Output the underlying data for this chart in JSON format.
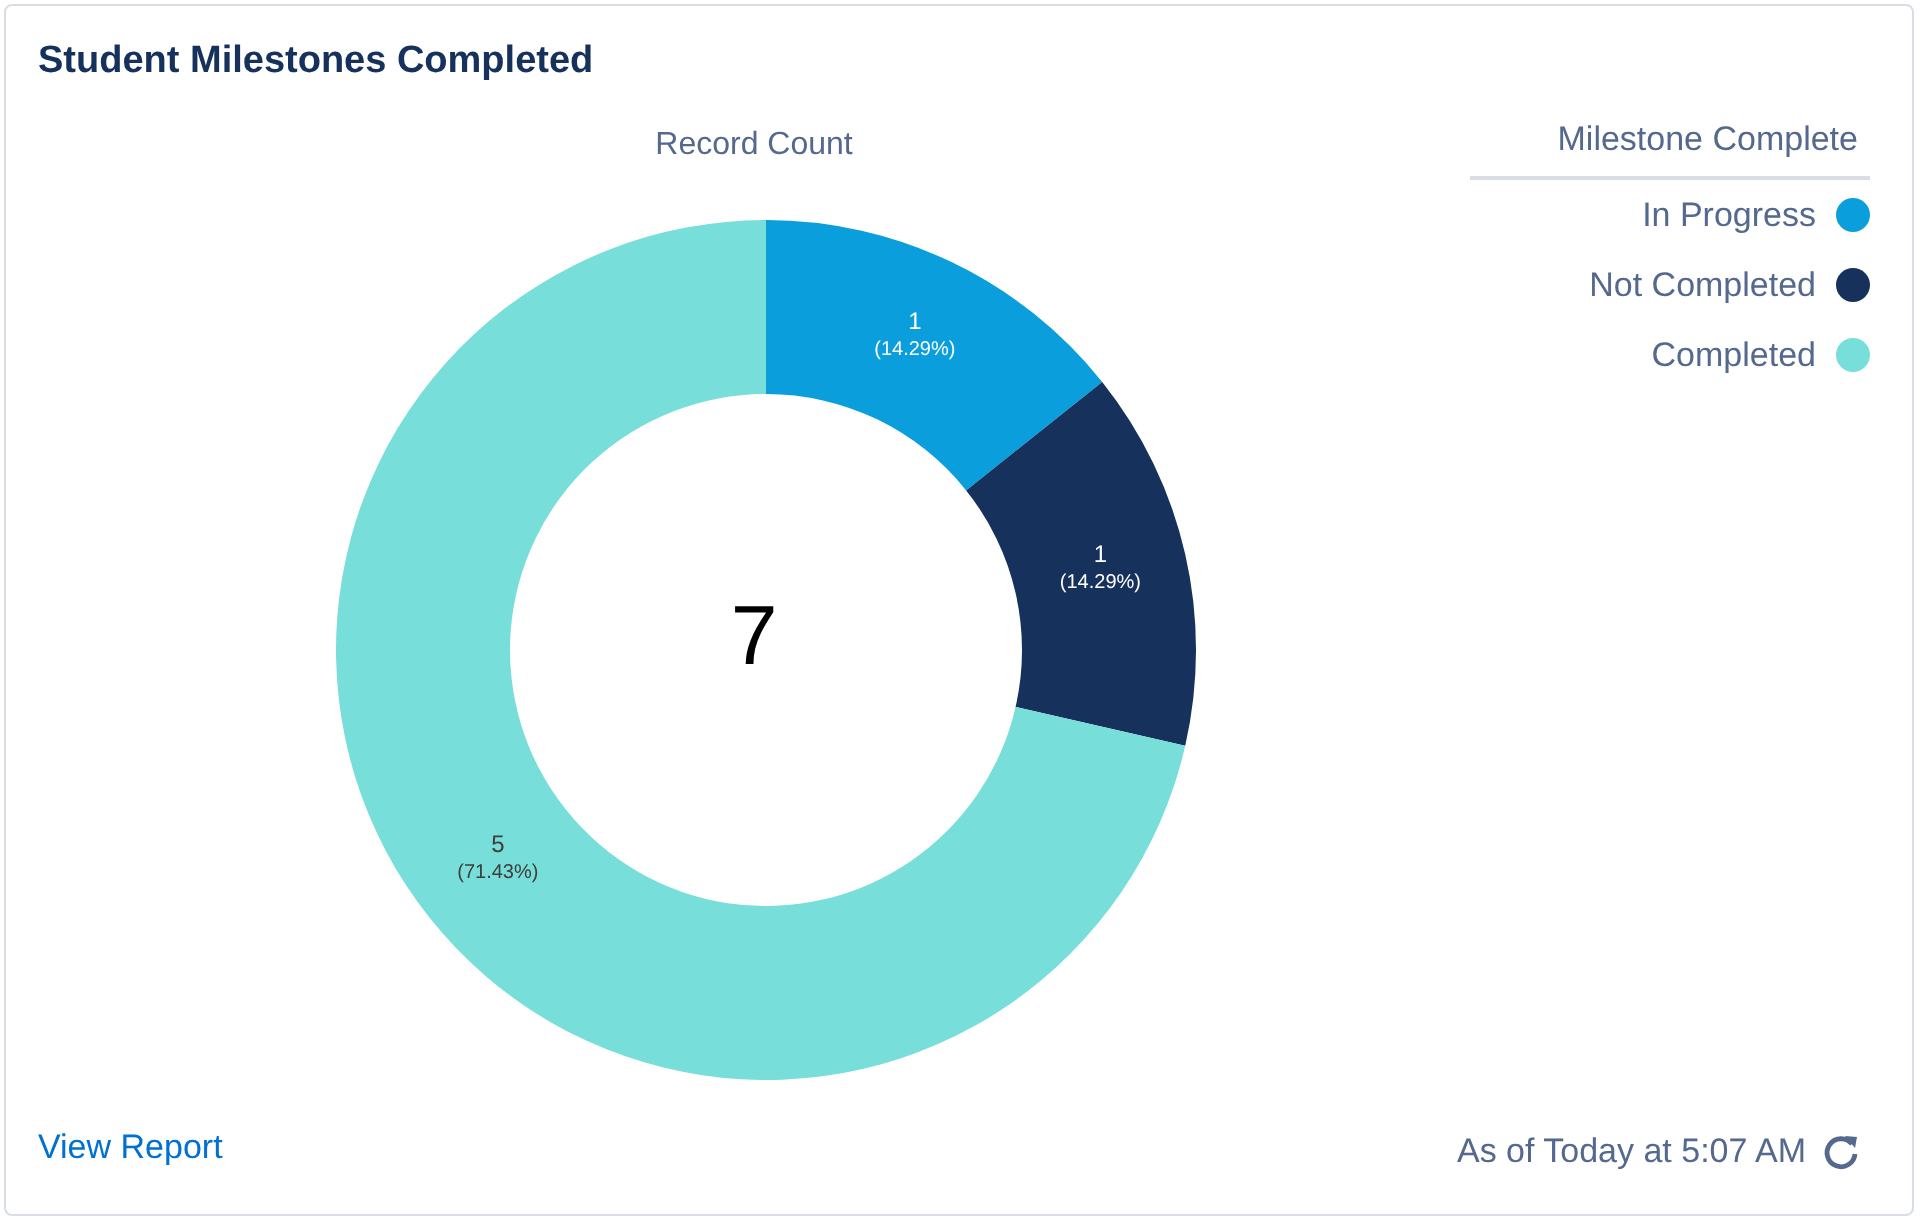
{
  "chart_data": {
    "type": "donut",
    "title": "Student Milestones Completed",
    "subtitle": "Record Count",
    "legend_title": "Milestone Complete",
    "legend": "top right",
    "categories": [
      "In Progress",
      "Not Completed",
      "Completed"
    ],
    "values": [
      1,
      1,
      5
    ],
    "colors": [
      "#0a9fdc",
      "#16325c",
      "#78ded9"
    ],
    "value_labels": [
      "1\n(14.29%)",
      "1\n(14.29%)",
      "5\n(71.43%)"
    ],
    "annotations": [
      "7",
      "View Report",
      "As of Today at 5:07 AM"
    ]
  }
}
